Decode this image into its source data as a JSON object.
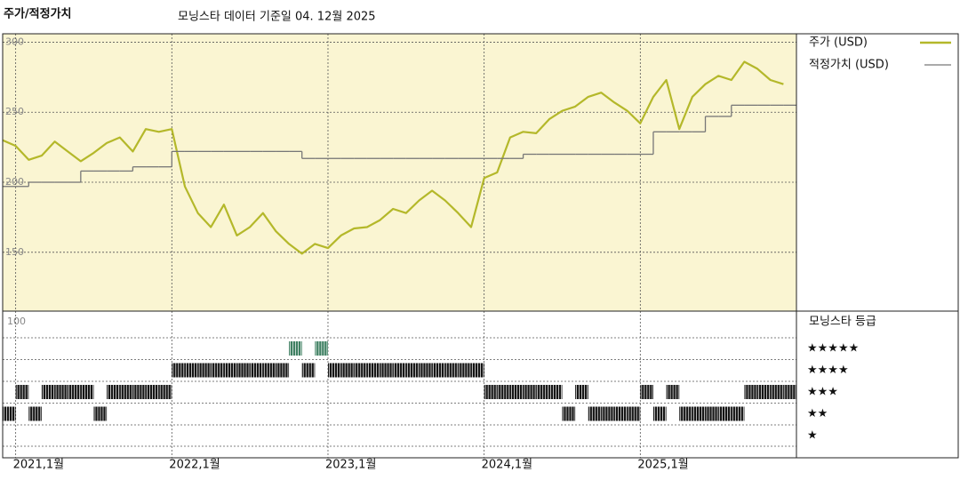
{
  "title": "주가/적정가치",
  "subtitle": "모닝스타 데이터 기준일 04. 12월 2025",
  "chart_data": [
    {
      "type": "line",
      "x": [
        "2020-12",
        "2021-01",
        "2021-02",
        "2021-03",
        "2021-04",
        "2021-05",
        "2021-06",
        "2021-07",
        "2021-08",
        "2021-09",
        "2021-10",
        "2021-11",
        "2021-12",
        "2022-01",
        "2022-02",
        "2022-03",
        "2022-04",
        "2022-05",
        "2022-06",
        "2022-07",
        "2022-08",
        "2022-09",
        "2022-10",
        "2022-11",
        "2022-12",
        "2023-01",
        "2023-02",
        "2023-03",
        "2023-04",
        "2023-05",
        "2023-06",
        "2023-07",
        "2023-08",
        "2023-09",
        "2023-10",
        "2023-11",
        "2023-12",
        "2024-01",
        "2024-02",
        "2024-03",
        "2024-04",
        "2024-05",
        "2024-06",
        "2024-07",
        "2024-08",
        "2024-09",
        "2024-10",
        "2024-11",
        "2024-12",
        "2025-01",
        "2025-02",
        "2025-03",
        "2025-04",
        "2025-05",
        "2025-06",
        "2025-07",
        "2025-08",
        "2025-09",
        "2025-10",
        "2025-11",
        "2025-12"
      ],
      "series": [
        {
          "name": "주가 (USD)",
          "color": "#b4b82a",
          "values": [
            230,
            226,
            216,
            219,
            229,
            222,
            215,
            221,
            228,
            232,
            222,
            238,
            236,
            238,
            197,
            178,
            168,
            184,
            162,
            168,
            178,
            165,
            156,
            149,
            156,
            153,
            162,
            167,
            168,
            173,
            181,
            178,
            187,
            194,
            187,
            178,
            168,
            203,
            207,
            232,
            236,
            235,
            245,
            251,
            254,
            261,
            264,
            257,
            251,
            242,
            261,
            273,
            238,
            261,
            270,
            276,
            273,
            286,
            281,
            273,
            270
          ]
        },
        {
          "name": "적정가치 (USD)",
          "color": "#777777",
          "step": true,
          "values": [
            197,
            197,
            200,
            200,
            200,
            200,
            208,
            208,
            208,
            208,
            211,
            211,
            211,
            222,
            222,
            222,
            222,
            222,
            222,
            222,
            222,
            222,
            222,
            217,
            217,
            217,
            217,
            217,
            217,
            217,
            217,
            217,
            217,
            217,
            217,
            217,
            217,
            217,
            217,
            217,
            220,
            220,
            220,
            220,
            220,
            220,
            220,
            220,
            220,
            220,
            236,
            236,
            236,
            236,
            247,
            247,
            255,
            255,
            255,
            255,
            255
          ]
        }
      ],
      "xlim": [
        "2020-12",
        "2026-01"
      ],
      "xticks": [
        {
          "value": "2021-01",
          "label": "2021,1월"
        },
        {
          "value": "2022-01",
          "label": "2022,1월"
        },
        {
          "value": "2023-01",
          "label": "2023,1월"
        },
        {
          "value": "2024-01",
          "label": "2024,1월"
        },
        {
          "value": "2025-01",
          "label": "2025,1월"
        }
      ],
      "ylim": [
        108,
        306
      ],
      "yticks": [
        150,
        200,
        250,
        300
      ],
      "grid": true,
      "legend": "right"
    },
    {
      "type": "rating",
      "title": "모닝스타 등급",
      "y_top_label": "100",
      "x": [
        "2020-12",
        "2021-01",
        "2021-02",
        "2021-03",
        "2021-04",
        "2021-05",
        "2021-06",
        "2021-07",
        "2021-08",
        "2021-09",
        "2021-10",
        "2021-11",
        "2021-12",
        "2022-01",
        "2022-02",
        "2022-03",
        "2022-04",
        "2022-05",
        "2022-06",
        "2022-07",
        "2022-08",
        "2022-09",
        "2022-10",
        "2022-11",
        "2022-12",
        "2023-01",
        "2023-02",
        "2023-03",
        "2023-04",
        "2023-05",
        "2023-06",
        "2023-07",
        "2023-08",
        "2023-09",
        "2023-10",
        "2023-11",
        "2023-12",
        "2024-01",
        "2024-02",
        "2024-03",
        "2024-04",
        "2024-05",
        "2024-06",
        "2024-07",
        "2024-08",
        "2024-09",
        "2024-10",
        "2024-11",
        "2024-12",
        "2025-01",
        "2025-02",
        "2025-03",
        "2025-04",
        "2025-05",
        "2025-06",
        "2025-07",
        "2025-08",
        "2025-09",
        "2025-10",
        "2025-11",
        "2025-12"
      ],
      "values": [
        2,
        3,
        2,
        3,
        3,
        3,
        3,
        2,
        3,
        3,
        3,
        3,
        3,
        4,
        4,
        4,
        4,
        4,
        4,
        4,
        4,
        4,
        5,
        4,
        5,
        4,
        4,
        4,
        4,
        4,
        4,
        4,
        4,
        4,
        4,
        4,
        4,
        3,
        3,
        3,
        3,
        3,
        3,
        2,
        3,
        2,
        2,
        2,
        2,
        3,
        2,
        3,
        2,
        2,
        2,
        2,
        2,
        3,
        3,
        3,
        3
      ],
      "levels": [
        5,
        4,
        3,
        2,
        1
      ],
      "level_labels": [
        "★★★★★",
        "★★★★",
        "★★★",
        "★★",
        "★"
      ],
      "level_colors": [
        "#3f8062",
        "#151515",
        "#151515",
        "#151515",
        "#151515"
      ]
    }
  ]
}
